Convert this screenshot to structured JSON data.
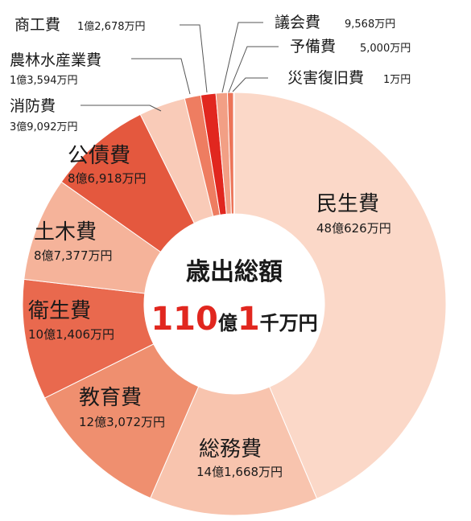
{
  "chart_data": {
    "type": "pie",
    "subtype": "donut",
    "center": {
      "title": "歳出総額",
      "total_parts": [
        {
          "text": "110",
          "style": "big-red"
        },
        {
          "text": "億",
          "style": "small-black"
        },
        {
          "text": "1",
          "style": "big-red"
        },
        {
          "text": "千万円",
          "style": "small-black"
        }
      ]
    },
    "slices": [
      {
        "name": "民生費",
        "label": "48億626万円",
        "value": 480626,
        "color": "#fbd8c8"
      },
      {
        "name": "総務費",
        "label": "14億1,668万円",
        "value": 141668,
        "color": "#f8c4ae"
      },
      {
        "name": "教育費",
        "label": "12億3,072万円",
        "value": 123072,
        "color": "#ef8f6f"
      },
      {
        "name": "衛生費",
        "label": "10億1,406万円",
        "value": 101406,
        "color": "#e9694e"
      },
      {
        "name": "土木費",
        "label": "8億7,377万円",
        "value": 87377,
        "color": "#f5b39a"
      },
      {
        "name": "公債費",
        "label": "8億6,918万円",
        "value": 86918,
        "color": "#e4583e"
      },
      {
        "name": "消防費",
        "label": "3億9,092万円",
        "value": 39092,
        "color": "#f9cbb8"
      },
      {
        "name": "農林水産業費",
        "label": "1億3,594万円",
        "value": 13594,
        "color": "#ee7d61"
      },
      {
        "name": "商工費",
        "label": "1億2,678万円",
        "value": 12678,
        "color": "#e1271f"
      },
      {
        "name": "議会費",
        "label": "9,568万円",
        "value": 9568,
        "color": "#f29f85"
      },
      {
        "name": "予備費",
        "label": "5,000万円",
        "value": 5000,
        "color": "#ec7458"
      },
      {
        "name": "災害復旧費",
        "label": "1万円",
        "value": 1,
        "color": "#c4161c"
      }
    ]
  }
}
